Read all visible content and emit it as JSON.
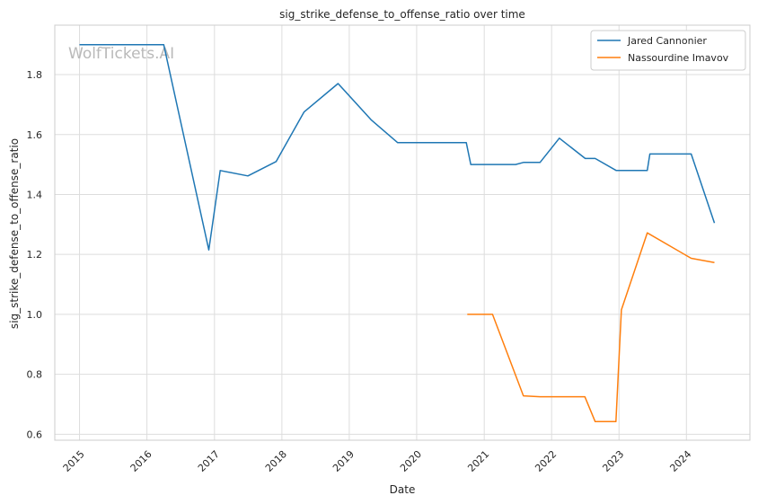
{
  "chart_data": {
    "type": "line",
    "title": "sig_strike_defense_to_offense_ratio over time",
    "xlabel": "Date",
    "ylabel": "sig_strike_defense_to_offense_ratio",
    "watermark": "WolfTickets.AI",
    "x_ticks": [
      "2015",
      "2016",
      "2017",
      "2018",
      "2019",
      "2020",
      "2021",
      "2022",
      "2023",
      "2024"
    ],
    "y_ticks": [
      "0.6",
      "0.8",
      "1.0",
      "1.2",
      "1.4",
      "1.6",
      "1.8"
    ],
    "xlim": [
      "2014-08-20",
      "2024-12-10"
    ],
    "ylim": [
      0.58,
      1.965
    ],
    "grid": true,
    "legend_position": "top-right",
    "series": [
      {
        "name": "Jared Cannonier",
        "color": "#1f77b4",
        "points": [
          [
            "2015-01-01",
            1.9
          ],
          [
            "2016-04-01",
            1.9
          ],
          [
            "2016-12-01",
            1.215
          ],
          [
            "2017-02-01",
            1.48
          ],
          [
            "2017-07-01",
            1.462
          ],
          [
            "2017-12-01",
            1.51
          ],
          [
            "2018-05-01",
            1.675
          ],
          [
            "2018-11-01",
            1.77
          ],
          [
            "2019-05-01",
            1.648
          ],
          [
            "2019-09-20",
            1.573
          ],
          [
            "2020-09-26",
            1.573
          ],
          [
            "2020-10-20",
            1.5
          ],
          [
            "2021-06-20",
            1.5
          ],
          [
            "2021-08-01",
            1.507
          ],
          [
            "2021-10-30",
            1.507
          ],
          [
            "2022-02-12",
            1.588
          ],
          [
            "2022-07-02",
            1.52
          ],
          [
            "2022-08-25",
            1.52
          ],
          [
            "2022-12-17",
            1.48
          ],
          [
            "2023-06-03",
            1.48
          ],
          [
            "2023-06-17",
            1.535
          ],
          [
            "2024-01-27",
            1.535
          ],
          [
            "2024-06-01",
            1.305
          ]
        ]
      },
      {
        "name": "Nassourdine Imavov",
        "color": "#ff7f0e",
        "points": [
          [
            "2020-10-01",
            1.0
          ],
          [
            "2021-02-15",
            1.0
          ],
          [
            "2021-08-01",
            0.728
          ],
          [
            "2021-10-30",
            0.725
          ],
          [
            "2022-06-30",
            0.725
          ],
          [
            "2022-08-25",
            0.642
          ],
          [
            "2022-12-15",
            0.642
          ],
          [
            "2023-01-14",
            1.015
          ],
          [
            "2023-06-03",
            1.272
          ],
          [
            "2024-01-27",
            1.187
          ],
          [
            "2024-06-01",
            1.173
          ]
        ]
      }
    ]
  }
}
